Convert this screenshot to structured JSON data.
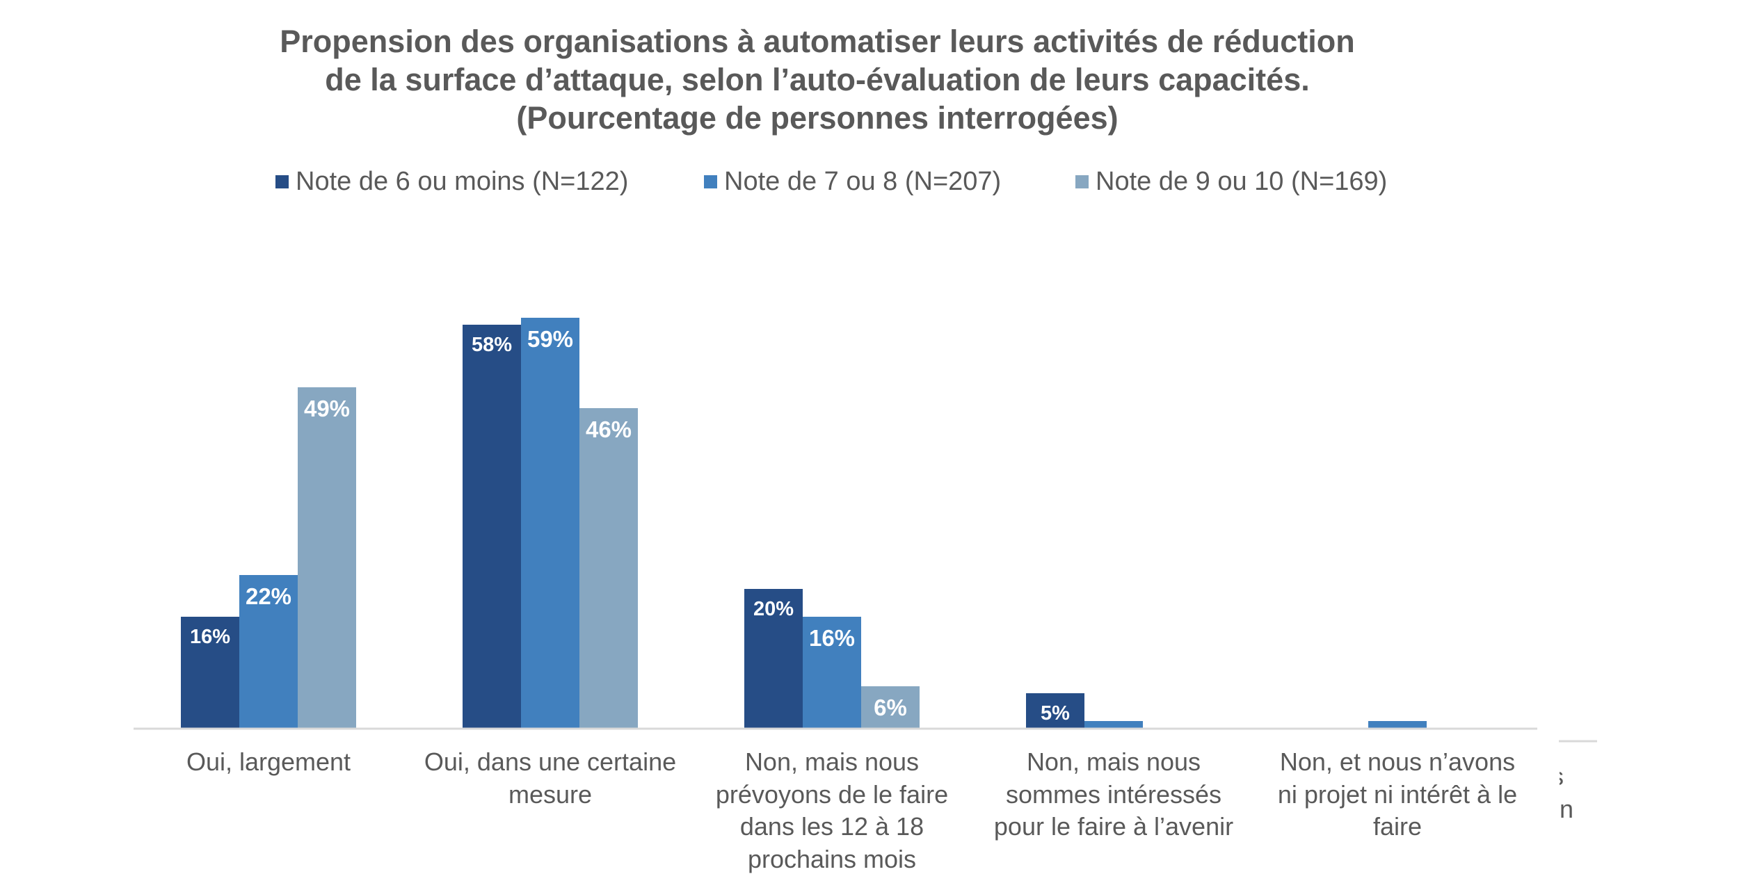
{
  "chart_data": {
    "type": "bar",
    "title": [
      "Propension des organisations à automatiser leurs activités de réduction",
      "de la surface d’attaque, selon l’auto-évaluation de leurs capacités.",
      "(Pourcentage de personnes interrogées)"
    ],
    "xlabel": "",
    "ylabel": "",
    "ylim": [
      0,
      62
    ],
    "grid": false,
    "legend_position": "top",
    "categories": [
      [
        "Oui, largement"
      ],
      [
        "Oui, dans une certaine",
        "mesure"
      ],
      [
        "Non, mais nous",
        "prévoyons de le faire",
        "dans les 12 à 18",
        "prochains mois"
      ],
      [
        "Non, mais nous",
        "sommes intéressés",
        "pour le faire à l’avenir"
      ],
      [
        "Non, et nous n’avons",
        "ni projet ni intérêt à le",
        "faire"
      ]
    ],
    "series": [
      {
        "name": "Note de 6 ou moins (N=122)",
        "color": "#264D86",
        "values": [
          16,
          58,
          20,
          5,
          0
        ],
        "labels": [
          "16%",
          "58%",
          "20%",
          "5%",
          ""
        ]
      },
      {
        "name": "Note de 7 ou 8 (N=207)",
        "color": "#4180BE",
        "values": [
          22,
          59,
          16,
          1,
          1
        ],
        "labels": [
          "22%",
          "59%",
          "16%",
          "",
          ""
        ]
      },
      {
        "name": "Note de 9 ou 10 (N=169)",
        "color": "#87A7C1",
        "values": [
          49,
          46,
          6,
          0,
          0
        ],
        "labels": [
          "49%",
          "46%",
          "6%",
          "",
          ""
        ]
      }
    ]
  },
  "colors": {
    "text": "#595959",
    "axis": "#D9D9D9",
    "data_label": "#FFFFFF"
  },
  "overflow_fragment": {
    "lines": [
      "s",
      "n"
    ]
  }
}
